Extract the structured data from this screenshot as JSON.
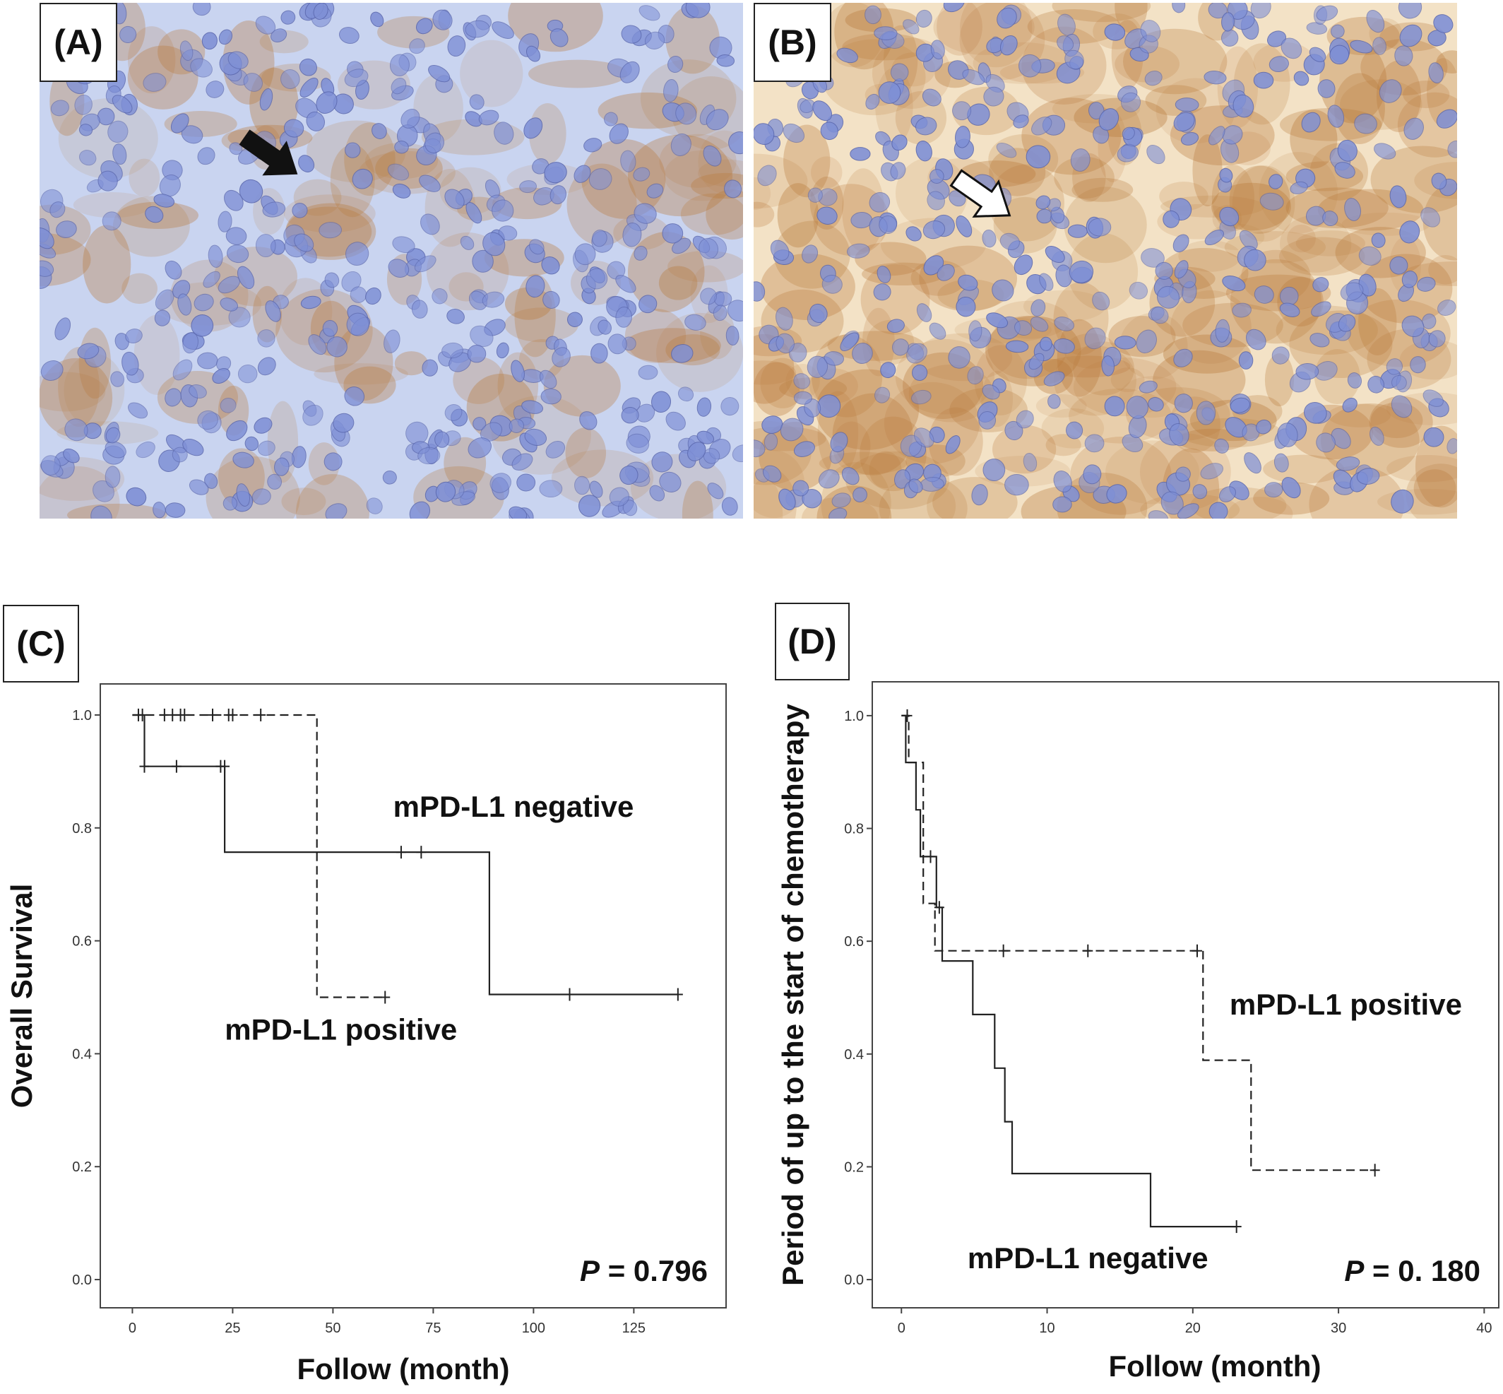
{
  "panels": {
    "a": {
      "letter": "(A)"
    },
    "b": {
      "letter": "(B)"
    },
    "c": {
      "letter": "(C)"
    },
    "d": {
      "letter": "(D)"
    }
  },
  "colors": {
    "tissue_a_bg": "#c9d4f0",
    "tissue_b_bg": "#f3e2c6",
    "stain": "#b8793a",
    "nucleus": "#7f90d6",
    "line": "#222222"
  },
  "chart_data": [
    {
      "type": "line",
      "panel": "(C)",
      "xlabel": "Follow (month)",
      "ylabel": "Overall Survival",
      "xlim": [
        -8,
        148
      ],
      "ylim": [
        -0.05,
        1.055
      ],
      "xticks": [
        0,
        25,
        50,
        75,
        100,
        125
      ],
      "yticks": [
        0.0,
        0.2,
        0.4,
        0.6,
        0.8,
        1.0
      ],
      "ytick_labels": [
        "0.0",
        "0.2",
        "0.4",
        "0.6",
        "0.8",
        "1.0"
      ],
      "pvalue": {
        "p": "P",
        "rest": " = 0.796"
      },
      "series": [
        {
          "name": "mPD-L1 negative",
          "style": "solid",
          "steps": [
            [
              0,
              1.0
            ],
            [
              3,
              1.0
            ],
            [
              3,
              0.909
            ],
            [
              23,
              0.909
            ],
            [
              23,
              0.757
            ],
            [
              89,
              0.757
            ],
            [
              89,
              0.505
            ],
            [
              136,
              0.505
            ]
          ],
          "censors": [
            [
              3,
              0.909
            ],
            [
              11,
              0.909
            ],
            [
              22,
              0.909
            ],
            [
              23,
              0.909
            ],
            [
              67,
              0.757
            ],
            [
              72,
              0.757
            ],
            [
              109,
              0.505
            ],
            [
              136,
              0.505
            ]
          ]
        },
        {
          "name": "mPD-L1 positive",
          "style": "dashed",
          "steps": [
            [
              0,
              1.0
            ],
            [
              46,
              1.0
            ],
            [
              46,
              0.5
            ],
            [
              63,
              0.5
            ]
          ],
          "censors": [
            [
              1.5,
              1.0
            ],
            [
              2.5,
              1.0
            ],
            [
              8,
              1.0
            ],
            [
              10,
              1.0
            ],
            [
              12,
              1.0
            ],
            [
              13,
              1.0
            ],
            [
              20,
              1.0
            ],
            [
              24,
              1.0
            ],
            [
              25,
              1.0
            ],
            [
              32,
              1.0
            ],
            [
              63,
              0.5
            ]
          ]
        }
      ],
      "annotations": [
        {
          "series": "mPD-L1 negative",
          "text": "mPD-L1 negative",
          "x": 95,
          "y": 0.82
        },
        {
          "series": "mPD-L1 positive",
          "text": "mPD-L1 positive",
          "x": 52,
          "y": 0.425
        }
      ]
    },
    {
      "type": "line",
      "panel": "(D)",
      "xlabel": "Follow (month)",
      "ylabel": "Period of up to the start of chemotherapy",
      "xlim": [
        -2,
        41
      ],
      "ylim": [
        -0.05,
        1.06
      ],
      "xticks": [
        0,
        10,
        20,
        30,
        40
      ],
      "yticks": [
        0.0,
        0.2,
        0.4,
        0.6,
        0.8,
        1.0
      ],
      "ytick_labels": [
        "0.0",
        "0.2",
        "0.4",
        "0.6",
        "0.8",
        "1.0"
      ],
      "pvalue": {
        "p": "P",
        "rest": " = 0. 180"
      },
      "series": [
        {
          "name": "mPD-L1 negative",
          "style": "solid",
          "steps": [
            [
              0,
              1.0
            ],
            [
              0.3,
              1.0
            ],
            [
              0.3,
              0.917
            ],
            [
              1.0,
              0.917
            ],
            [
              1.0,
              0.833
            ],
            [
              1.3,
              0.833
            ],
            [
              1.3,
              0.75
            ],
            [
              2.4,
              0.75
            ],
            [
              2.4,
              0.66
            ],
            [
              2.8,
              0.66
            ],
            [
              2.8,
              0.565
            ],
            [
              4.9,
              0.565
            ],
            [
              4.9,
              0.47
            ],
            [
              6.4,
              0.47
            ],
            [
              6.4,
              0.375
            ],
            [
              7.1,
              0.375
            ],
            [
              7.1,
              0.28
            ],
            [
              7.6,
              0.28
            ],
            [
              7.6,
              0.188
            ],
            [
              17.1,
              0.188
            ],
            [
              17.1,
              0.094
            ],
            [
              23,
              0.094
            ]
          ],
          "censors": [
            [
              2.0,
              0.75
            ],
            [
              2.6,
              0.66
            ],
            [
              23,
              0.094
            ]
          ]
        },
        {
          "name": "mPD-L1 positive",
          "style": "dashed",
          "steps": [
            [
              0,
              1.0
            ],
            [
              0.5,
              1.0
            ],
            [
              0.5,
              0.917
            ],
            [
              1.5,
              0.917
            ],
            [
              1.5,
              0.667
            ],
            [
              2.3,
              0.667
            ],
            [
              2.3,
              0.583
            ],
            [
              20.7,
              0.583
            ],
            [
              20.7,
              0.389
            ],
            [
              24.0,
              0.389
            ],
            [
              24.0,
              0.194
            ],
            [
              32.5,
              0.194
            ]
          ],
          "censors": [
            [
              0.4,
              1.0
            ],
            [
              7.0,
              0.583
            ],
            [
              12.8,
              0.583
            ],
            [
              20.3,
              0.583
            ],
            [
              32.5,
              0.194
            ]
          ]
        }
      ],
      "annotations": [
        {
          "series": "mPD-L1 positive",
          "text": "mPD-L1 positive",
          "x": 30.5,
          "y": 0.47
        },
        {
          "series": "mPD-L1 negative",
          "text": "mPD-L1 negative",
          "x": 12.8,
          "y": 0.02
        }
      ]
    }
  ]
}
